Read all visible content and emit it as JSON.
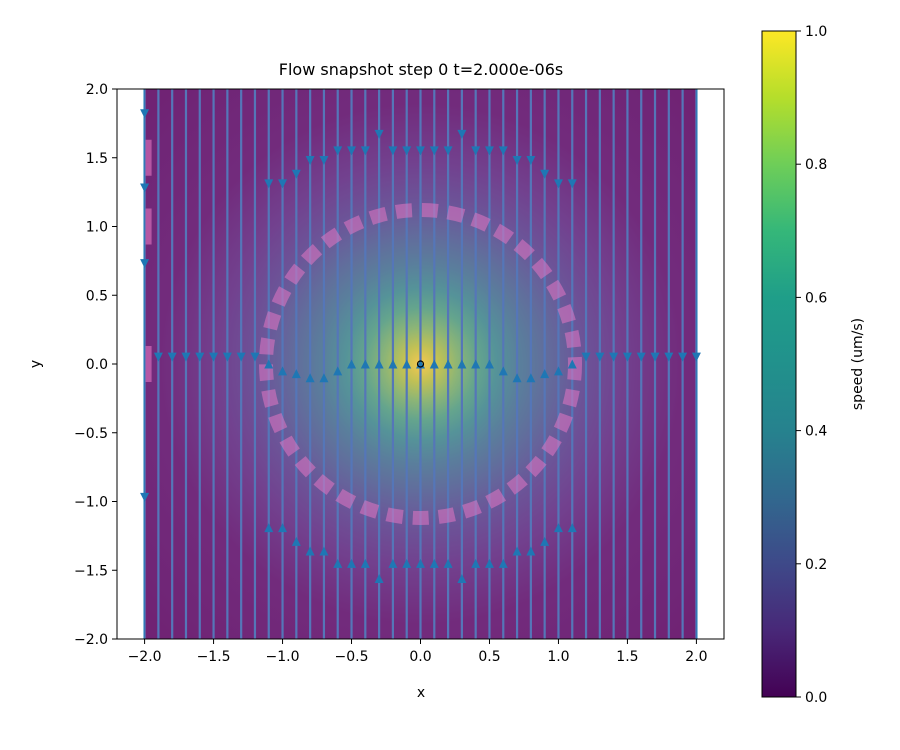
{
  "chart_data": {
    "type": "streamplot",
    "title": "Flow snapshot step 0 t=2.000e-06s",
    "xlabel": "x",
    "ylabel": "y",
    "xlim": [
      -2.2,
      2.2
    ],
    "ylim": [
      -2.0,
      2.0
    ],
    "xticks": [
      -2.0,
      -1.5,
      -1.0,
      -0.5,
      0.0,
      0.5,
      1.0,
      1.5,
      2.0
    ],
    "yticks": [
      -2.0,
      -1.5,
      -1.0,
      -0.5,
      0.0,
      0.5,
      1.0,
      1.5,
      2.0
    ],
    "xtick_labels": [
      "−2.0",
      "−1.5",
      "−1.0",
      "−0.5",
      "0.0",
      "0.5",
      "1.0",
      "1.5",
      "2.0"
    ],
    "ytick_labels": [
      "−2.0",
      "−1.5",
      "−1.0",
      "−0.5",
      "0.0",
      "0.5",
      "1.0",
      "1.5",
      "2.0"
    ],
    "image_extent": [
      -2.0,
      2.0,
      -2.0,
      2.0
    ],
    "speed_field": {
      "center": [
        0.0,
        0.0
      ],
      "peak": 1.0,
      "width": 0.3
    },
    "colormap": "viridis",
    "colorbar": {
      "label": "speed (um/s)",
      "range": [
        0.0,
        1.0
      ],
      "ticks": [
        0.0,
        0.2,
        0.4,
        0.6,
        0.8,
        1.0
      ],
      "tick_labels": [
        "0.0",
        "0.2",
        "0.4",
        "0.6",
        "0.8",
        "1.0"
      ]
    },
    "boundary_circle": {
      "center": [
        0.0,
        0.0
      ],
      "radius": 1.12,
      "color": "#e377c2"
    },
    "left_boundary_marks": [
      1.5,
      1.0,
      0.0
    ],
    "streamline_x": [
      -2.0,
      -1.9,
      -1.8,
      -1.7,
      -1.6,
      -1.5,
      -1.4,
      -1.3,
      -1.2,
      -1.1,
      -1.0,
      -0.9,
      -0.8,
      -0.7,
      -0.6,
      -0.5,
      -0.4,
      -0.3,
      -0.2,
      -0.1,
      0.0,
      0.1,
      0.2,
      0.3,
      0.4,
      0.5,
      0.6,
      0.7,
      0.8,
      0.9,
      1.0,
      1.1,
      1.2,
      1.3,
      1.4,
      1.5,
      1.6,
      1.7,
      1.8,
      1.9,
      2.0
    ],
    "arrows_down": [
      [
        -2.0,
        1.82
      ],
      [
        -2.0,
        1.28
      ],
      [
        -2.0,
        0.73
      ],
      [
        -2.0,
        -0.97
      ],
      [
        -1.9,
        0.05
      ],
      [
        -1.8,
        0.05
      ],
      [
        -1.7,
        0.05
      ],
      [
        -1.6,
        0.05
      ],
      [
        -1.5,
        0.05
      ],
      [
        -1.4,
        0.05
      ],
      [
        -1.3,
        0.05
      ],
      [
        -1.2,
        0.05
      ],
      [
        1.2,
        0.05
      ],
      [
        1.3,
        0.05
      ],
      [
        1.4,
        0.05
      ],
      [
        1.5,
        0.05
      ],
      [
        1.6,
        0.05
      ],
      [
        1.7,
        0.05
      ],
      [
        1.8,
        0.05
      ],
      [
        1.9,
        0.05
      ],
      [
        2.0,
        0.05
      ],
      [
        -1.1,
        1.31
      ],
      [
        -1.0,
        1.31
      ],
      [
        -0.9,
        1.38
      ],
      [
        -0.8,
        1.48
      ],
      [
        -0.7,
        1.48
      ],
      [
        -0.6,
        1.55
      ],
      [
        -0.5,
        1.55
      ],
      [
        -0.4,
        1.55
      ],
      [
        -0.2,
        1.55
      ],
      [
        -0.1,
        1.55
      ],
      [
        0.0,
        1.55
      ],
      [
        0.1,
        1.55
      ],
      [
        0.2,
        1.55
      ],
      [
        0.4,
        1.55
      ],
      [
        0.5,
        1.55
      ],
      [
        0.6,
        1.55
      ],
      [
        0.7,
        1.48
      ],
      [
        0.8,
        1.48
      ],
      [
        0.9,
        1.38
      ],
      [
        1.0,
        1.31
      ],
      [
        1.1,
        1.31
      ],
      [
        -0.3,
        1.67
      ],
      [
        0.3,
        1.67
      ]
    ],
    "arrows_up": [
      [
        -1.1,
        0.0
      ],
      [
        -1.0,
        -0.05
      ],
      [
        -0.9,
        -0.07
      ],
      [
        -0.8,
        -0.1
      ],
      [
        -0.7,
        -0.1
      ],
      [
        -0.6,
        -0.05
      ],
      [
        -0.5,
        0.0
      ],
      [
        -0.4,
        0.0
      ],
      [
        -0.3,
        0.0
      ],
      [
        -0.2,
        0.0
      ],
      [
        -0.1,
        0.0
      ],
      [
        0.0,
        0.0
      ],
      [
        0.1,
        0.0
      ],
      [
        0.2,
        0.0
      ],
      [
        0.3,
        0.0
      ],
      [
        0.4,
        0.0
      ],
      [
        0.5,
        0.0
      ],
      [
        0.6,
        -0.05
      ],
      [
        0.7,
        -0.1
      ],
      [
        0.8,
        -0.1
      ],
      [
        0.9,
        -0.07
      ],
      [
        1.0,
        -0.05
      ],
      [
        1.1,
        0.0
      ],
      [
        -1.1,
        -1.19
      ],
      [
        -1.0,
        -1.19
      ],
      [
        -0.9,
        -1.29
      ],
      [
        -0.8,
        -1.36
      ],
      [
        -0.7,
        -1.36
      ],
      [
        -0.6,
        -1.45
      ],
      [
        -0.5,
        -1.45
      ],
      [
        -0.4,
        -1.45
      ],
      [
        -0.2,
        -1.45
      ],
      [
        -0.1,
        -1.45
      ],
      [
        0.0,
        -1.45
      ],
      [
        0.1,
        -1.45
      ],
      [
        0.2,
        -1.45
      ],
      [
        0.4,
        -1.45
      ],
      [
        0.5,
        -1.45
      ],
      [
        0.6,
        -1.45
      ],
      [
        0.7,
        -1.36
      ],
      [
        0.8,
        -1.36
      ],
      [
        0.9,
        -1.29
      ],
      [
        1.0,
        -1.19
      ],
      [
        1.1,
        -1.19
      ],
      [
        -0.3,
        -1.56
      ],
      [
        0.3,
        -1.56
      ]
    ],
    "colors": {
      "streamline": "#1f77b4",
      "overlay": "#e377c2",
      "axes": "#000000"
    }
  }
}
